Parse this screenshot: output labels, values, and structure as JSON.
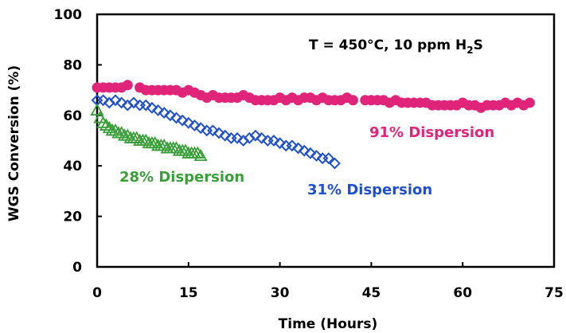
{
  "chart_data": {
    "type": "scatter",
    "xlabel": "Time (Hours)",
    "ylabel": "WGS Conversion (%)",
    "xlim": [
      0,
      75
    ],
    "ylim": [
      0,
      100
    ],
    "xticks": [
      "0",
      "15",
      "30",
      "45",
      "60",
      "75"
    ],
    "yticks": [
      "0",
      "20",
      "40",
      "60",
      "80",
      "100"
    ],
    "annotation": {
      "prefix": "T = 450°C, 10 ppm H",
      "sub": "2",
      "suffix": "S"
    },
    "grid": false,
    "series": [
      {
        "name": "91% Dispersion",
        "marker": "circle",
        "color": "#e0247a",
        "x": [
          0,
          1,
          2,
          3,
          4,
          5,
          7,
          8,
          9,
          10,
          11,
          12,
          13,
          14,
          15,
          16,
          17,
          18,
          19,
          20,
          21,
          22,
          23,
          24,
          25,
          26,
          27,
          28,
          29,
          30,
          31,
          32,
          33,
          34,
          35,
          36,
          37,
          38,
          39,
          40,
          41,
          42,
          44,
          45,
          46,
          47,
          48,
          49,
          50,
          51,
          52,
          53,
          54,
          55,
          56,
          57,
          58,
          59,
          60,
          61,
          62,
          63,
          64,
          65,
          66,
          67,
          68,
          69,
          70,
          71
        ],
        "y": [
          71,
          71,
          71,
          71,
          71,
          72,
          71,
          70,
          70,
          70,
          70,
          70,
          70,
          69,
          70,
          69,
          68,
          67,
          68,
          67,
          67,
          67,
          67,
          68,
          67,
          66,
          66,
          66,
          66,
          67,
          66,
          67,
          66,
          67,
          67,
          66,
          67,
          66,
          66,
          66,
          67,
          66,
          66,
          66,
          66,
          66,
          65,
          66,
          65,
          65,
          65,
          65,
          65,
          64,
          64,
          64,
          64,
          64,
          65,
          64,
          64,
          63,
          64,
          64,
          64,
          65,
          64,
          65,
          64,
          65
        ]
      },
      {
        "name": "31% Dispersion",
        "marker": "diamond",
        "color": "#1f4fcc",
        "x": [
          0,
          1,
          2,
          3,
          4,
          5,
          6,
          7,
          8,
          9,
          10,
          11,
          12,
          13,
          14,
          15,
          16,
          17,
          18,
          19,
          20,
          21,
          22,
          23,
          24,
          25,
          26,
          27,
          28,
          29,
          30,
          31,
          32,
          33,
          34,
          35,
          36,
          37,
          38,
          39
        ],
        "y": [
          66,
          66,
          65,
          66,
          65,
          64,
          65,
          64,
          64,
          63,
          62,
          61,
          60,
          59,
          58,
          57,
          56,
          55,
          54,
          54,
          53,
          52,
          51,
          51,
          50,
          51,
          52,
          51,
          50,
          50,
          49,
          48,
          48,
          47,
          46,
          45,
          44,
          43,
          43,
          41
        ]
      },
      {
        "name": "28% Dispersion",
        "marker": "triangle",
        "color": "#3a9e3a",
        "x": [
          0,
          0.5,
          1,
          1.5,
          2,
          2.5,
          3,
          3.5,
          4,
          4.5,
          5,
          5.5,
          6,
          6.5,
          7,
          7.5,
          8,
          8.5,
          9,
          9.5,
          10,
          10.5,
          11,
          11.5,
          12,
          12.5,
          13,
          13.5,
          14,
          14.5,
          15,
          15.5,
          16,
          16.5,
          17
        ],
        "y": [
          62,
          59,
          57,
          56,
          55,
          54,
          54,
          53,
          53,
          52,
          52,
          51,
          51,
          51,
          50,
          50,
          50,
          49,
          49,
          49,
          48,
          48,
          48,
          47,
          47,
          47,
          47,
          46,
          46,
          46,
          45,
          45,
          45,
          45,
          44
        ]
      }
    ]
  }
}
